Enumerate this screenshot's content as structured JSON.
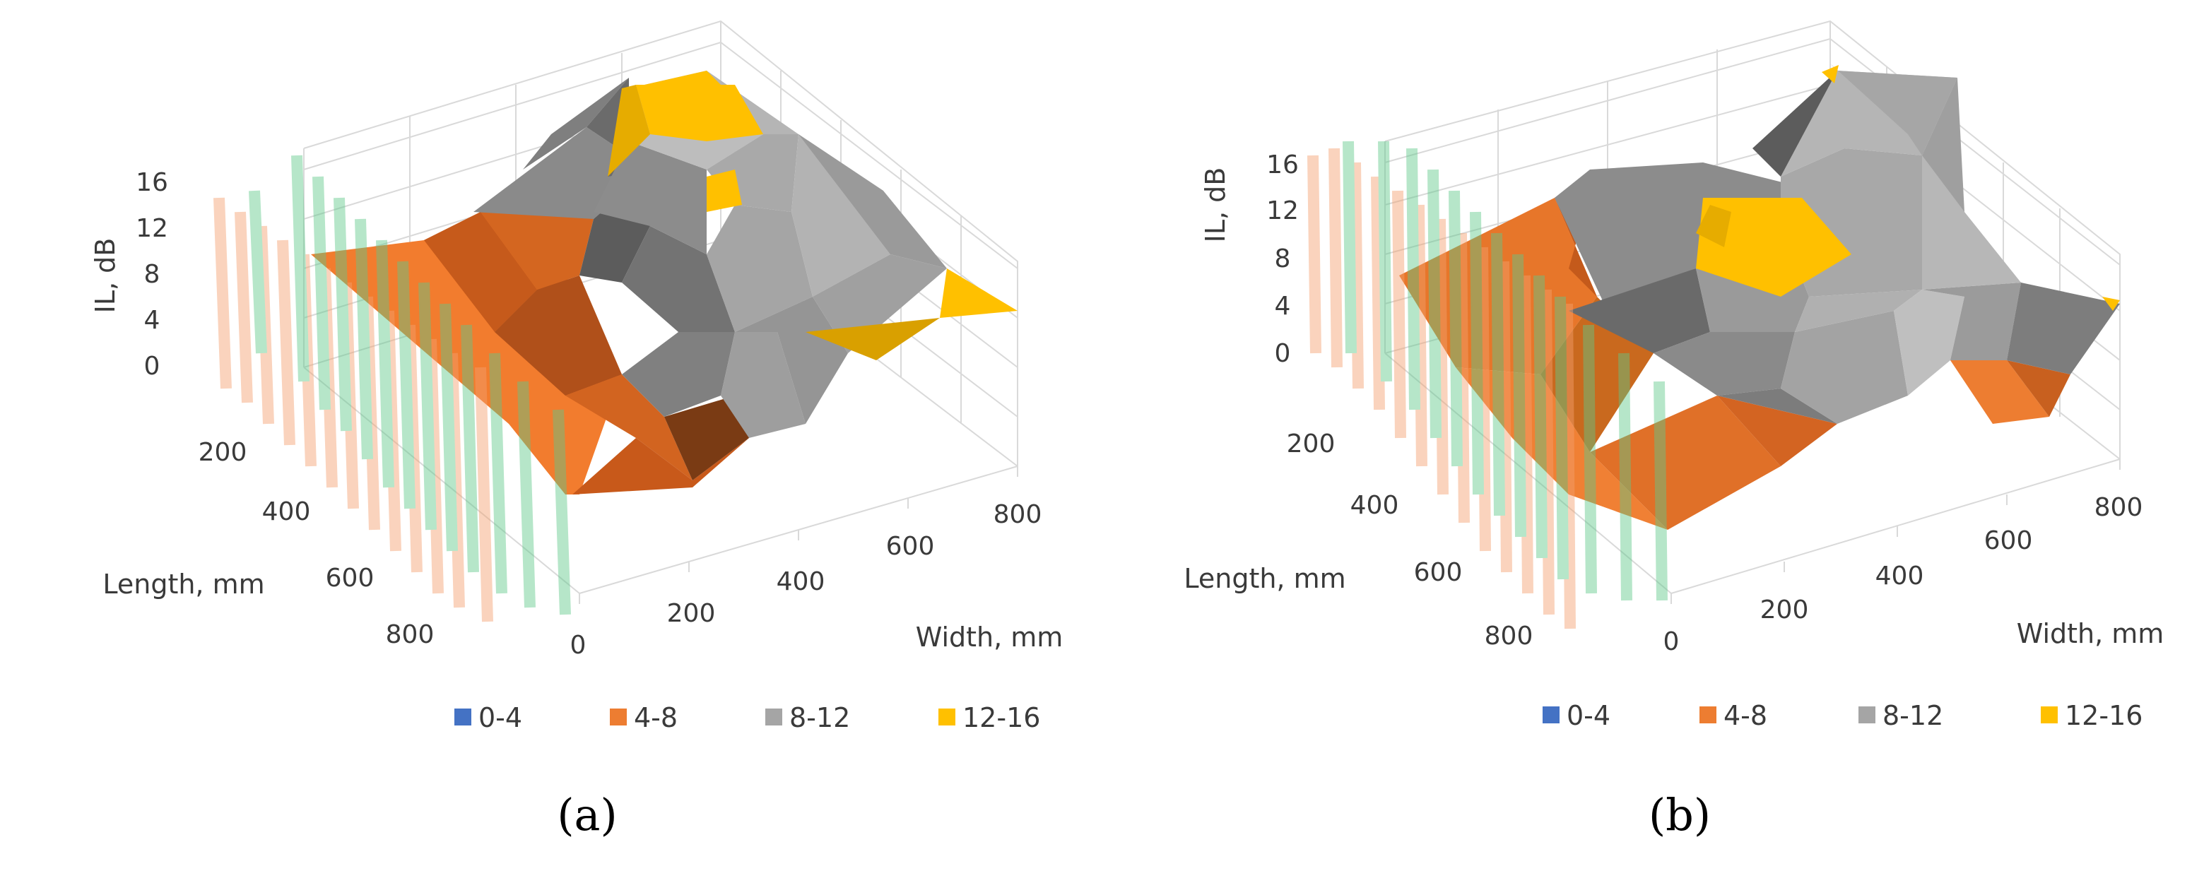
{
  "chart_data": [
    {
      "type": "surface3d",
      "panel_label": "(a)",
      "z_axis_label": "IL, dB",
      "x_axis_label": "Length, mm",
      "y_axis_label": "Width, mm",
      "z_ticks": [
        "0",
        "4",
        "8",
        "12",
        "16"
      ],
      "length_ticks": [
        "200",
        "400",
        "600",
        "800"
      ],
      "width_ticks": [
        "0",
        "200",
        "400",
        "600",
        "800"
      ],
      "zlim": [
        0,
        16
      ],
      "legend": [
        {
          "label": "0-4",
          "color": "#4472c4"
        },
        {
          "label": "4-8",
          "color": "#ed7d31"
        },
        {
          "label": "8-12",
          "color": "#a5a5a5"
        },
        {
          "label": "12-16",
          "color": "#ffc000"
        }
      ]
    },
    {
      "type": "surface3d",
      "panel_label": "(b)",
      "z_axis_label": "IL, dB",
      "x_axis_label": "Length, mm",
      "y_axis_label": "Width, mm",
      "z_ticks": [
        "0",
        "4",
        "8",
        "12",
        "16"
      ],
      "length_ticks": [
        "200",
        "400",
        "600",
        "800"
      ],
      "width_ticks": [
        "0",
        "200",
        "400",
        "600",
        "800"
      ],
      "zlim": [
        0,
        16
      ],
      "legend": [
        {
          "label": "0-4",
          "color": "#4472c4"
        },
        {
          "label": "4-8",
          "color": "#ed7d31"
        },
        {
          "label": "8-12",
          "color": "#a5a5a5"
        },
        {
          "label": "12-16",
          "color": "#ffc000"
        }
      ]
    }
  ]
}
